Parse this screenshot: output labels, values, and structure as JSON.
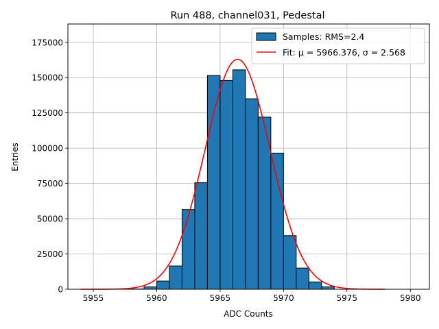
{
  "chart_data": {
    "type": "bar",
    "title": "Run 488, channel031, Pedestal",
    "xlabel": "ADC Counts",
    "ylabel": "Entries",
    "xlim": [
      5953,
      5981.5
    ],
    "ylim": [
      0,
      188000
    ],
    "grid": true,
    "legend_position": "top-right",
    "xticks": [
      5955,
      5960,
      5965,
      5970,
      5975,
      5980
    ],
    "yticks": [
      0,
      25000,
      50000,
      75000,
      100000,
      125000,
      150000,
      175000
    ],
    "bin_edges": [
      5958,
      5959,
      5960,
      5961,
      5962,
      5963,
      5964,
      5965,
      5966,
      5967,
      5968,
      5969,
      5970,
      5971,
      5972,
      5973,
      5974
    ],
    "counts": [
      200,
      1700,
      5800,
      16500,
      56500,
      75500,
      151500,
      148000,
      155500,
      135000,
      122000,
      96500,
      38000,
      15000,
      5200,
      1700
    ],
    "fit": {
      "mu": 5966.376,
      "sigma": 2.568,
      "amplitude": 163000,
      "x_range": [
        5954,
        5978
      ]
    },
    "series": [
      {
        "name": "Samples: RMS=2.4",
        "kind": "histogram",
        "color": "#1f77b4"
      },
      {
        "name": "Fit: μ = 5966.376, σ = 2.568",
        "kind": "line",
        "color": "#ff0000"
      }
    ],
    "colors": {
      "bar_fill": "#1f77b4",
      "bar_edge": "#000000",
      "fit_line": "#ff0000",
      "grid": "#b0b0b0"
    }
  }
}
